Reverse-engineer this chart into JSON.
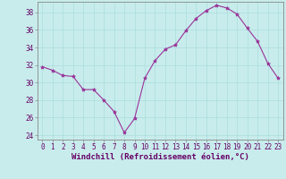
{
  "x": [
    0,
    1,
    2,
    3,
    4,
    5,
    6,
    7,
    8,
    9,
    10,
    11,
    12,
    13,
    14,
    15,
    16,
    17,
    18,
    19,
    20,
    21,
    22,
    23
  ],
  "y": [
    31.8,
    31.4,
    30.8,
    30.7,
    29.2,
    29.2,
    28.0,
    26.7,
    24.3,
    25.9,
    30.5,
    32.5,
    33.8,
    34.3,
    35.9,
    37.3,
    38.2,
    38.8,
    38.5,
    37.8,
    36.2,
    34.7,
    32.2,
    30.5
  ],
  "line_color": "#993399",
  "marker": "*",
  "marker_size": 3.0,
  "background_color": "#c8ecec",
  "grid_color": "#aadddd",
  "xlabel": "Windchill (Refroidissement éolien,°C)",
  "xlabel_fontsize": 6.5,
  "ylim": [
    23.5,
    39.2
  ],
  "xlim": [
    -0.5,
    23.5
  ],
  "yticks": [
    24,
    26,
    28,
    30,
    32,
    34,
    36,
    38
  ],
  "xticks": [
    0,
    1,
    2,
    3,
    4,
    5,
    6,
    7,
    8,
    9,
    10,
    11,
    12,
    13,
    14,
    15,
    16,
    17,
    18,
    19,
    20,
    21,
    22,
    23
  ],
  "tick_fontsize": 5.5,
  "tick_color": "#660066",
  "spine_color": "#888888",
  "linewidth": 0.8
}
